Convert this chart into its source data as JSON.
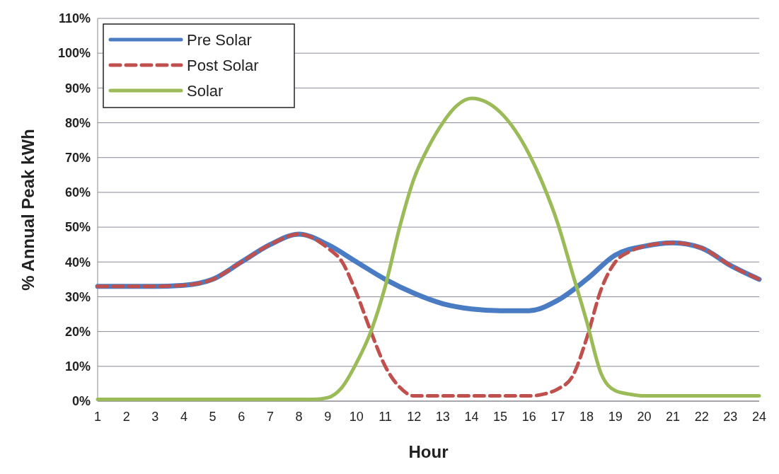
{
  "chart_data": {
    "type": "line",
    "xlabel": "Hour",
    "ylabel": "% Annual Peak kWh",
    "xlim": [
      1,
      24
    ],
    "xticks": [
      1,
      2,
      3,
      4,
      5,
      6,
      7,
      8,
      9,
      10,
      11,
      12,
      13,
      14,
      15,
      16,
      17,
      18,
      19,
      20,
      21,
      22,
      23,
      24
    ],
    "ylim": [
      0,
      110
    ],
    "yticks": [
      {
        "value": 0,
        "label": "0%"
      },
      {
        "value": 10,
        "label": "10%"
      },
      {
        "value": 20,
        "label": "20%"
      },
      {
        "value": 30,
        "label": "30%"
      },
      {
        "value": 40,
        "label": "40%"
      },
      {
        "value": 50,
        "label": "50%"
      },
      {
        "value": 60,
        "label": "60%"
      },
      {
        "value": 70,
        "label": "70%"
      },
      {
        "value": 80,
        "label": "80%"
      },
      {
        "value": 90,
        "label": "90%"
      },
      {
        "value": 100,
        "label": "100%"
      },
      {
        "value": 110,
        "label": "110%"
      }
    ],
    "grid": "y",
    "legend": "top left",
    "marker": "none",
    "series": [
      {
        "name": "Pre Solar",
        "color": "#4a7cc4",
        "line_style": "solid",
        "x": [
          1,
          2,
          3,
          4,
          5,
          6,
          7,
          8,
          9,
          10,
          11,
          12,
          13,
          14,
          15,
          16,
          17,
          18,
          19,
          20,
          21,
          22,
          23,
          24
        ],
        "values": [
          33,
          33,
          33,
          33.3,
          35,
          40,
          45,
          48,
          45,
          40,
          35,
          31,
          28,
          26.5,
          26,
          26,
          29,
          35,
          42,
          44.5,
          45.5,
          44,
          39,
          35
        ]
      },
      {
        "name": "Post Solar",
        "color": "#c0504d",
        "line_style": "dashed",
        "x": [
          1,
          2,
          3,
          4,
          5,
          6,
          7,
          8,
          9,
          9.5,
          10,
          10.5,
          11,
          11.5,
          12,
          13,
          14,
          15,
          16,
          16.5,
          17,
          17.5,
          18,
          18.5,
          19,
          19.5,
          20,
          21,
          22,
          23,
          24
        ],
        "values": [
          33,
          33,
          33,
          33.3,
          35,
          40,
          45,
          48,
          44,
          40,
          31,
          20,
          10,
          4,
          1.5,
          1.5,
          1.5,
          1.5,
          1.5,
          2,
          3.5,
          7,
          18,
          32,
          40,
          43,
          44.5,
          45.5,
          44,
          39,
          35
        ]
      },
      {
        "name": "Solar",
        "color": "#9bbb59",
        "line_style": "solid",
        "x": [
          1,
          2,
          3,
          4,
          5,
          6,
          7,
          8,
          8.5,
          9,
          9.5,
          10,
          10.5,
          11,
          11.5,
          12,
          12.5,
          13,
          13.5,
          14,
          14.5,
          15,
          15.5,
          16,
          16.5,
          17,
          17.5,
          18,
          18.5,
          19,
          19.5,
          20,
          21,
          22,
          23,
          24
        ],
        "values": [
          0.5,
          0.5,
          0.5,
          0.5,
          0.5,
          0.5,
          0.5,
          0.5,
          0.5,
          1,
          4,
          11,
          20,
          33,
          50,
          64,
          73,
          80,
          85,
          87,
          86,
          83,
          78,
          71,
          62,
          51,
          37,
          23,
          8,
          3,
          2,
          1.5,
          1.5,
          1.5,
          1.5,
          1.5
        ]
      }
    ]
  }
}
